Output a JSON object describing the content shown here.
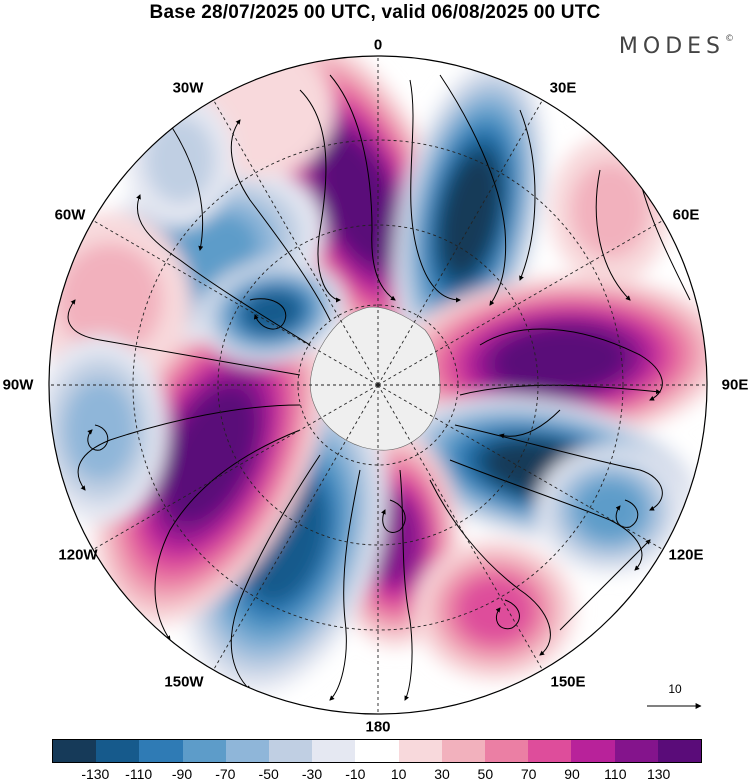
{
  "title": "Base 28/07/2025 00 UTC, valid 06/08/2025 00 UTC",
  "brand": {
    "name": "MODES",
    "mark": "©"
  },
  "meridian_labels": [
    "0",
    "30E",
    "60E",
    "90E",
    "120E",
    "150E",
    "180",
    "150W",
    "120W",
    "90W",
    "60W",
    "30W"
  ],
  "reference_vector": {
    "label": "10"
  },
  "colorbar": {
    "colors": [
      "#163a59",
      "#165a8c",
      "#2f7bb5",
      "#5d9cc9",
      "#8fb6d9",
      "#c0cfe3",
      "#e5e8f2",
      "#ffffff",
      "#f8d9dc",
      "#f2b1bd",
      "#eb7fa4",
      "#de4d9b",
      "#b8229a",
      "#84148c",
      "#5a0c79"
    ],
    "tick_labels": [
      "-130",
      "-110",
      "-90",
      "-70",
      "-50",
      "-30",
      "-10",
      "10",
      "30",
      "50",
      "70",
      "90",
      "110",
      "130"
    ]
  },
  "colors": {
    "land": "#efefef",
    "grid": "#222222"
  }
}
